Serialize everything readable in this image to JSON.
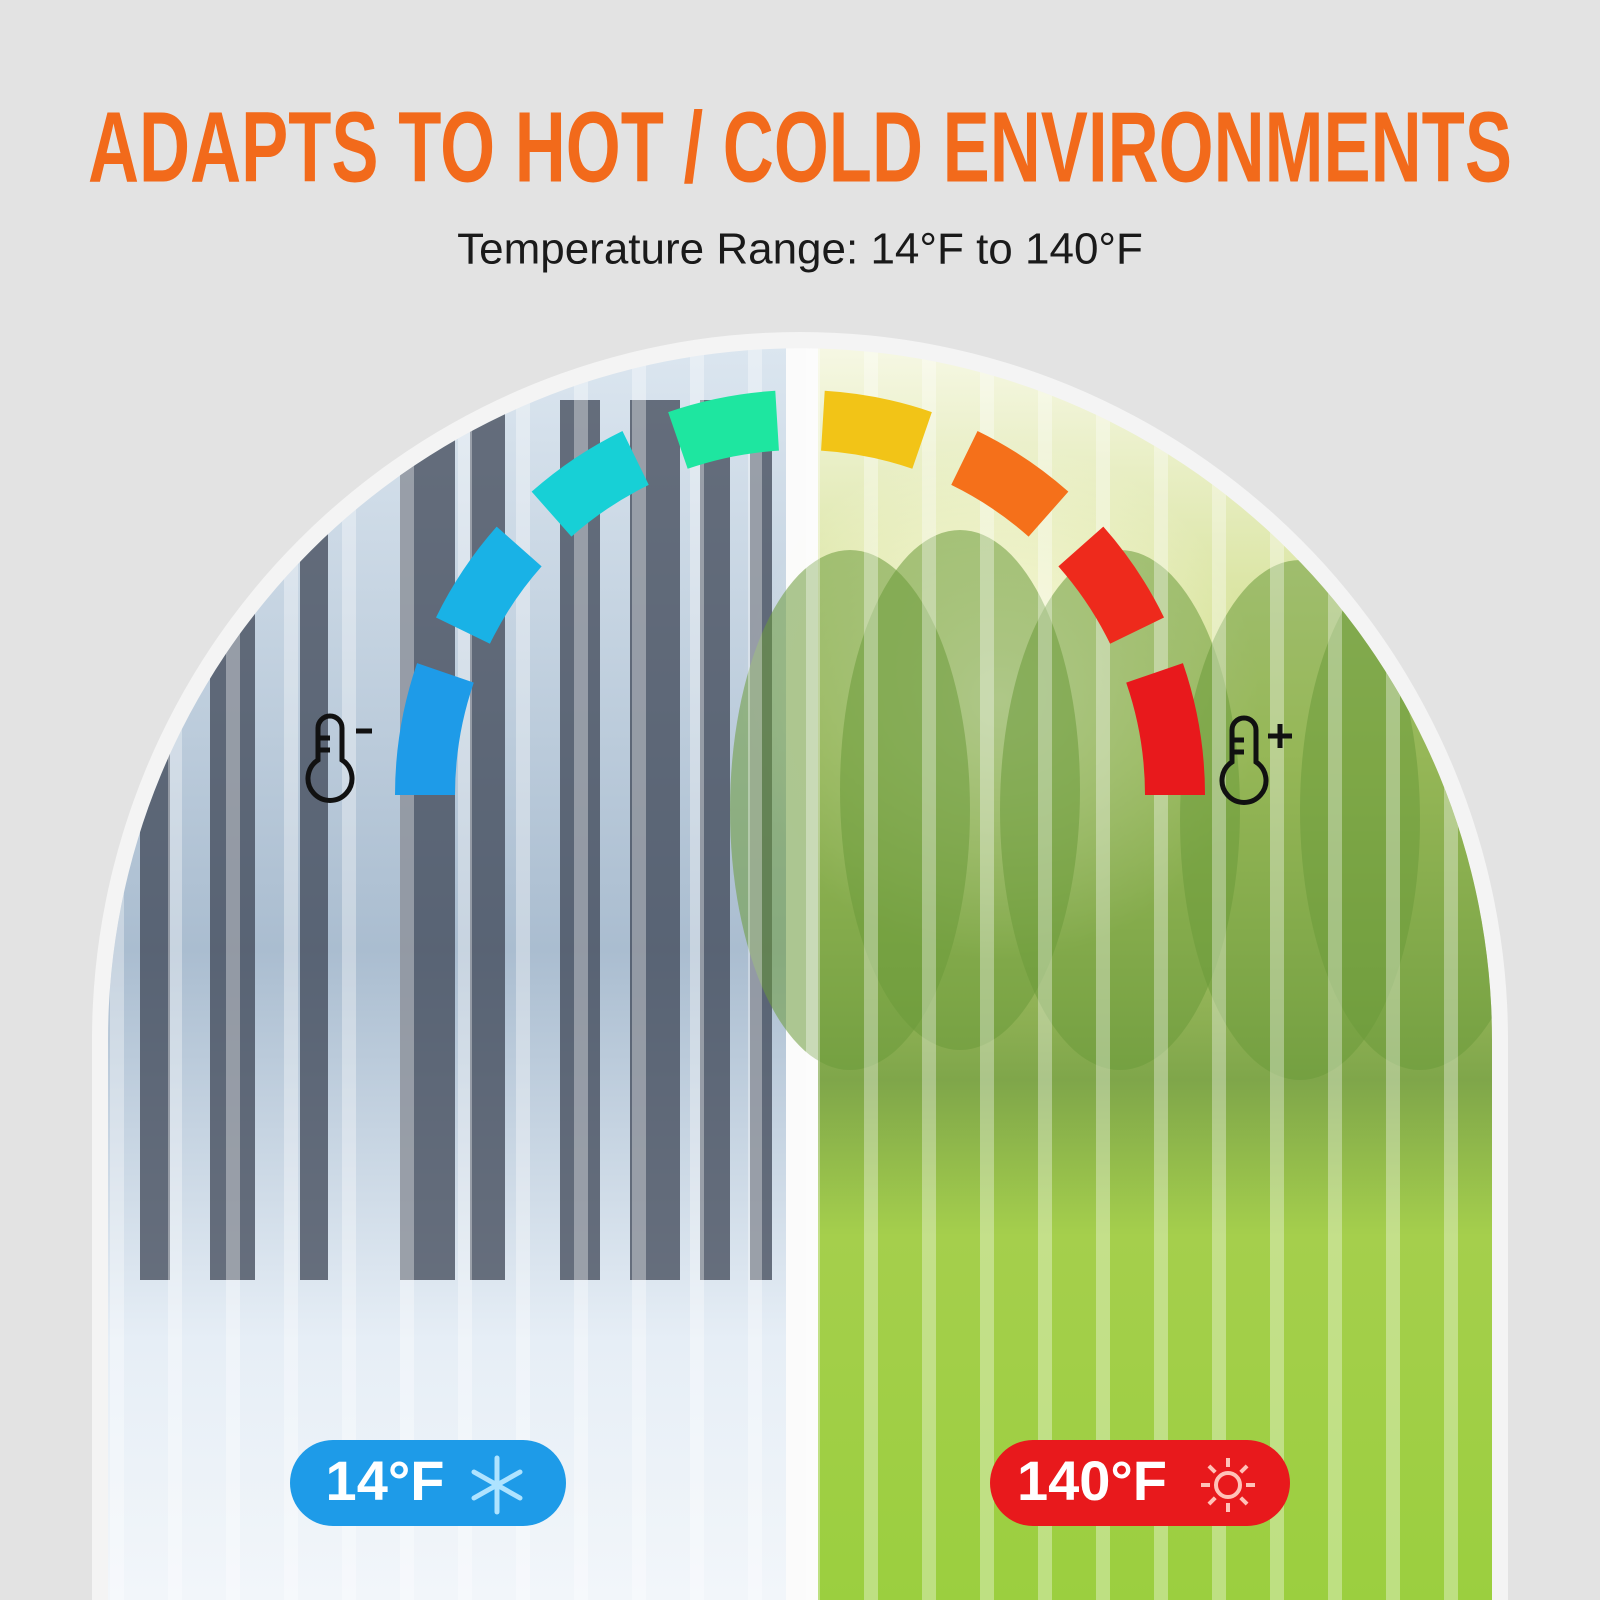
{
  "header": {
    "title": "ADAPTS TO HOT / COLD ENVIRONMENTS",
    "subtitle": "Temperature Range: 14°F to 140°F"
  },
  "badges": {
    "cold": "14°F",
    "hot": "140°F"
  }
}
